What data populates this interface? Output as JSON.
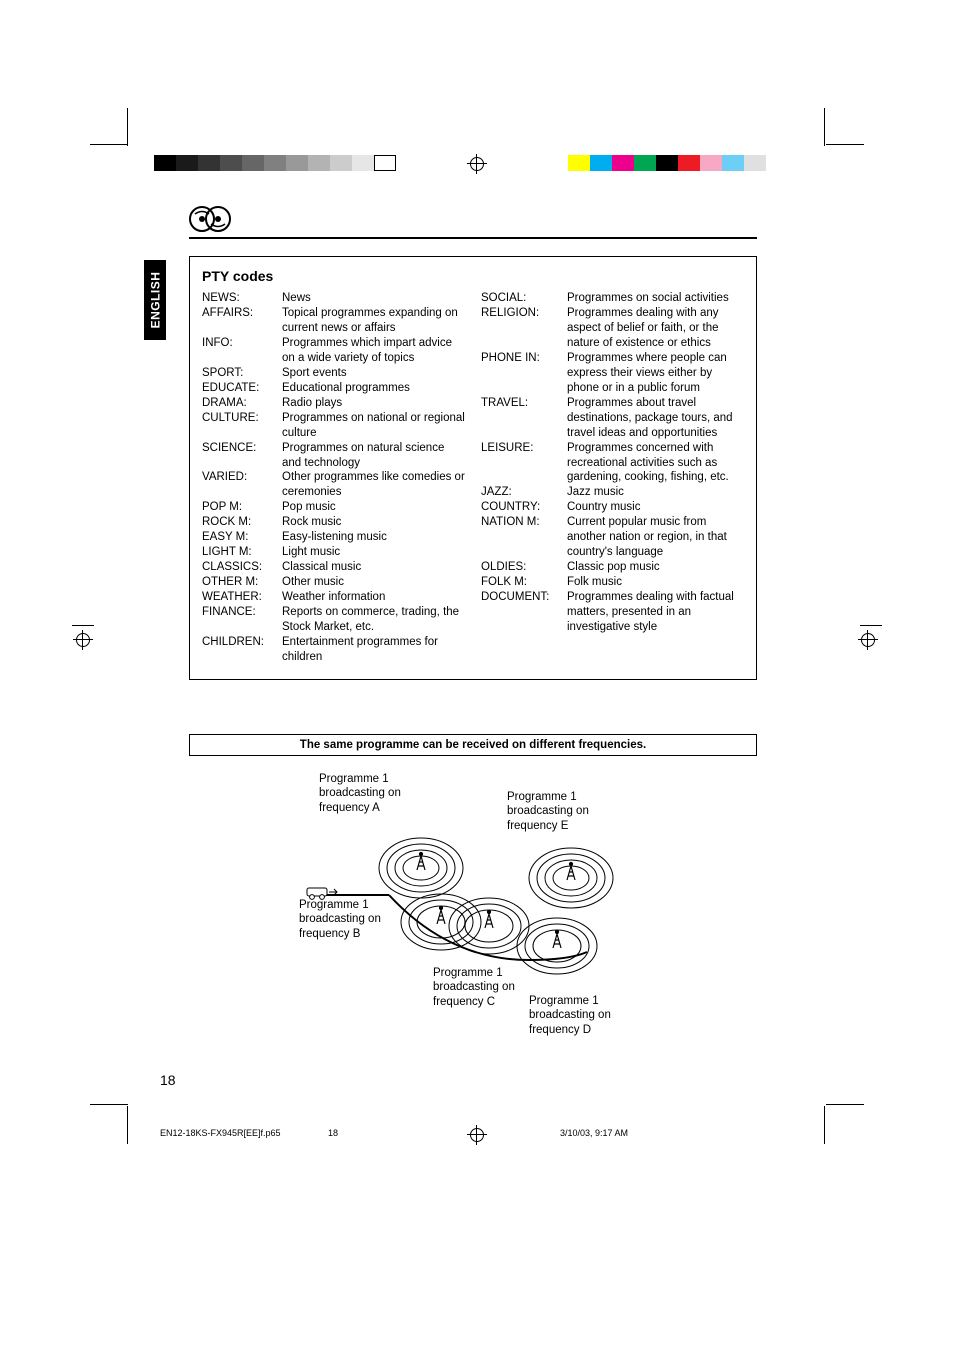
{
  "lang_tab": "ENGLISH",
  "section_title": "PTY codes",
  "left_codes": [
    {
      "lbl": "NEWS:",
      "desc": "News"
    },
    {
      "lbl": "AFFAIRS:",
      "desc": "Topical programmes expanding on current news or affairs"
    },
    {
      "lbl": "INFO:",
      "desc": "Programmes which impart advice on a wide variety of topics"
    },
    {
      "lbl": "SPORT:",
      "desc": "Sport events"
    },
    {
      "lbl": "EDUCATE:",
      "desc": "Educational programmes"
    },
    {
      "lbl": "DRAMA:",
      "desc": "Radio plays"
    },
    {
      "lbl": "CULTURE:",
      "desc": "Programmes on national or regional culture"
    },
    {
      "lbl": "SCIENCE:",
      "desc": "Programmes on natural science and technology"
    },
    {
      "lbl": "VARIED:",
      "desc": "Other programmes like comedies or ceremonies"
    },
    {
      "lbl": "POP M:",
      "desc": "Pop music"
    },
    {
      "lbl": "ROCK M:",
      "desc": "Rock music"
    },
    {
      "lbl": "EASY M:",
      "desc": "Easy-listening music"
    },
    {
      "lbl": "LIGHT M:",
      "desc": "Light music"
    },
    {
      "lbl": "CLASSICS:",
      "desc": "Classical music"
    },
    {
      "lbl": "OTHER M:",
      "desc": "Other music"
    },
    {
      "lbl": "WEATHER:",
      "desc": "Weather information"
    },
    {
      "lbl": "FINANCE:",
      "desc": "Reports on commerce, trading, the Stock Market, etc."
    },
    {
      "lbl": "CHILDREN:",
      "desc": "Entertainment programmes for children"
    }
  ],
  "right_codes": [
    {
      "lbl": "SOCIAL:",
      "desc": "Programmes on social activities"
    },
    {
      "lbl": "RELIGION:",
      "desc": "Programmes dealing with any aspect of belief or faith, or the nature of existence or ethics"
    },
    {
      "lbl": "PHONE IN:",
      "desc": "Programmes where people can express their views either by phone or in a public forum"
    },
    {
      "lbl": "TRAVEL:",
      "desc": "Programmes about travel destinations, package tours, and travel ideas and opportunities"
    },
    {
      "lbl": "LEISURE:",
      "desc": "Programmes concerned with recreational activities such as gardening, cooking, fishing, etc."
    },
    {
      "lbl": "JAZZ:",
      "desc": "Jazz music"
    },
    {
      "lbl": "COUNTRY:",
      "desc": "Country music"
    },
    {
      "lbl": "NATION M:",
      "desc": "Current popular music from another nation or region, in that country's language"
    },
    {
      "lbl": "OLDIES:",
      "desc": "Classic pop music"
    },
    {
      "lbl": "FOLK M:",
      "desc": "Folk music"
    },
    {
      "lbl": "DOCUMENT:",
      "desc": "Programmes dealing with factual matters, presented in an investigative style"
    }
  ],
  "freq_caption": "The same programme can be received on different frequencies.",
  "diagram": {
    "a": "Programme 1\nbroadcasting on\nfrequency A",
    "b": "Programme 1\nbroadcasting on\nfrequency B",
    "c": "Programme 1\nbroadcasting on\nfrequency C",
    "d": "Programme 1\nbroadcasting on\nfrequency D",
    "e": "Programme 1\nbroadcasting on\nfrequency E"
  },
  "page_number": "18",
  "footer": {
    "file": "EN12-18KS-FX945R[EE]f.p65",
    "page": "18",
    "date": "3/10/03, 9:17 AM"
  },
  "colors": {
    "left_bar": [
      "#000000",
      "#1a1a1a",
      "#333333",
      "#4d4d4d",
      "#666666",
      "#808080",
      "#999999",
      "#b3b3b3",
      "#cccccc",
      "#e6e6e6",
      "#ffffff"
    ],
    "right_bar": [
      "#ffffff",
      "#ffff00",
      "#00aeef",
      "#ec008c",
      "#00a651",
      "#000000",
      "#ed1c24",
      "#f7a8c4",
      "#6dcff6",
      "#e0e0e0"
    ]
  }
}
